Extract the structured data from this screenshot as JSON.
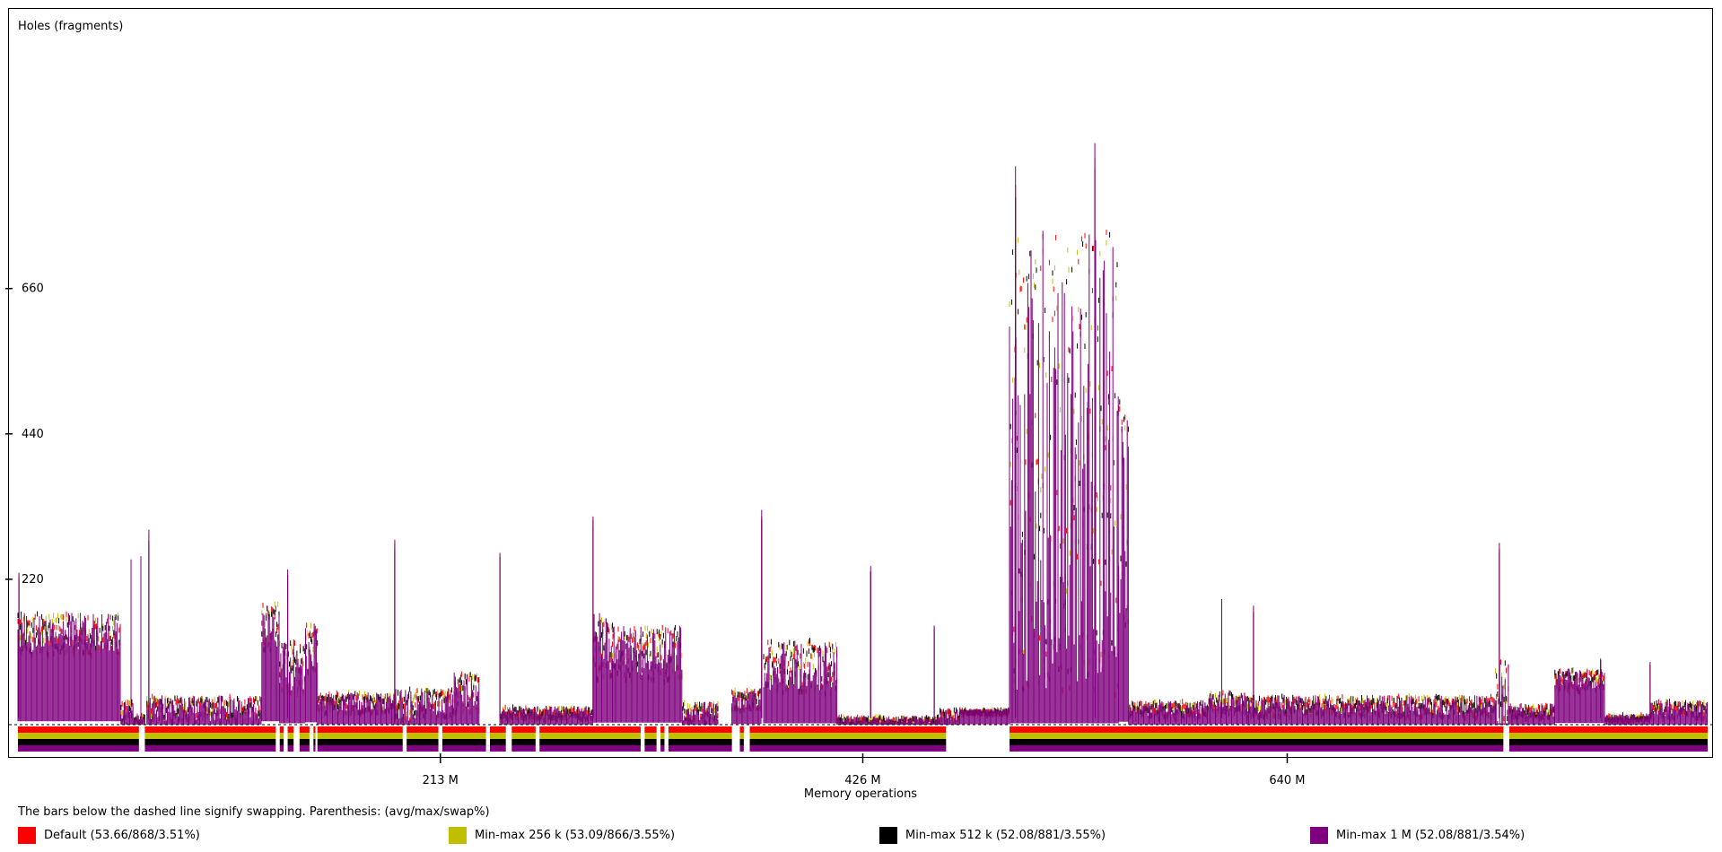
{
  "chart_data": {
    "type": "line",
    "ylabel": "Holes (fragments)",
    "xlabel": "Memory operations",
    "yticks": [
      {
        "value": 220,
        "label": "220"
      },
      {
        "value": 440,
        "label": "440"
      },
      {
        "value": 660,
        "label": "660"
      }
    ],
    "xticks": [
      {
        "value": 213,
        "label": "213 M"
      },
      {
        "value": 426,
        "label": "426 M"
      },
      {
        "value": 640,
        "label": "640 M"
      }
    ],
    "xlim": [
      0,
      852
    ],
    "ylim": [
      0,
      880
    ],
    "series": [
      {
        "name": "Default (53.66/868/3.51%)",
        "color": "#ff0000",
        "avg": 53.66,
        "max": 868,
        "swap_pct": 3.51
      },
      {
        "name": "Min-max 256 k (53.09/866/3.55%)",
        "color": "#bfbf00",
        "avg": 53.09,
        "max": 866,
        "swap_pct": 3.55
      },
      {
        "name": "Min-max 512 k (52.08/881/3.55%)",
        "color": "#000000",
        "avg": 52.08,
        "max": 881,
        "swap_pct": 3.55
      },
      {
        "name": "Min-max 1 M (52.08/881/3.54%)",
        "color": "#7f007f",
        "avg": 52.08,
        "max": 881,
        "swap_pct": 3.54
      }
    ],
    "segments": [
      {
        "x": [
          0,
          52
        ],
        "level": 140,
        "spread": 30
      },
      {
        "x": [
          52,
          58
        ],
        "level": 20,
        "spread": 20
      },
      {
        "x": [
          58,
          64
        ],
        "level": 10,
        "spread": 5
      },
      {
        "x": [
          65,
          123
        ],
        "level": 25,
        "spread": 20
      },
      {
        "x": [
          123,
          132
        ],
        "level": 150,
        "spread": 40
      },
      {
        "x": [
          132,
          145
        ],
        "level": 90,
        "spread": 40
      },
      {
        "x": [
          145,
          151
        ],
        "level": 120,
        "spread": 40
      },
      {
        "x": [
          151,
          190
        ],
        "level": 35,
        "spread": 15
      },
      {
        "x": [
          190,
          203
        ],
        "level": 30,
        "spread": 25
      },
      {
        "x": [
          203,
          220
        ],
        "level": 35,
        "spread": 20
      },
      {
        "x": [
          220,
          233
        ],
        "level": 50,
        "spread": 30
      },
      {
        "x": [
          243,
          290
        ],
        "level": 20,
        "spread": 8
      },
      {
        "x": [
          290,
          300
        ],
        "level": 120,
        "spread": 50
      },
      {
        "x": [
          300,
          335
        ],
        "level": 110,
        "spread": 40
      },
      {
        "x": [
          335,
          353
        ],
        "level": 20,
        "spread": 15
      },
      {
        "x": [
          360,
          375
        ],
        "level": 40,
        "spread": 15
      },
      {
        "x": [
          376,
          413
        ],
        "level": 90,
        "spread": 40
      },
      {
        "x": [
          413,
          465
        ],
        "level": 8,
        "spread": 6
      },
      {
        "x": [
          465,
          475
        ],
        "level": 15,
        "spread": 10
      },
      {
        "x": [
          475,
          500
        ],
        "level": 22,
        "spread": 2
      },
      {
        "x": [
          500,
          555
        ],
        "level": 400,
        "spread": 350
      },
      {
        "x": [
          555,
          560
        ],
        "level": 300,
        "spread": 200
      },
      {
        "x": [
          560,
          600
        ],
        "level": 25,
        "spread": 12
      },
      {
        "x": [
          600,
          620
        ],
        "level": 35,
        "spread": 15
      },
      {
        "x": [
          620,
          745
        ],
        "level": 30,
        "spread": 15
      },
      {
        "x": [
          745,
          752
        ],
        "level": 40,
        "spread": 60
      },
      {
        "x": [
          752,
          775
        ],
        "level": 22,
        "spread": 10
      },
      {
        "x": [
          775,
          800
        ],
        "level": 70,
        "spread": 15
      },
      {
        "x": [
          800,
          823
        ],
        "level": 12,
        "spread": 5
      },
      {
        "x": [
          823,
          852
        ],
        "level": 25,
        "spread": 12
      }
    ],
    "spikes": [
      {
        "x": 0.5,
        "y": 230
      },
      {
        "x": 57,
        "y": 250
      },
      {
        "x": 62,
        "y": 255
      },
      {
        "x": 66,
        "y": 295
      },
      {
        "x": 136,
        "y": 235
      },
      {
        "x": 190,
        "y": 280
      },
      {
        "x": 243,
        "y": 260
      },
      {
        "x": 290,
        "y": 315
      },
      {
        "x": 375,
        "y": 325
      },
      {
        "x": 430,
        "y": 240
      },
      {
        "x": 462,
        "y": 150
      },
      {
        "x": 607,
        "y": 190
      },
      {
        "x": 623,
        "y": 180
      },
      {
        "x": 747,
        "y": 275
      },
      {
        "x": 798,
        "y": 100
      },
      {
        "x": 823,
        "y": 95
      },
      {
        "x": 543,
        "y": 880
      },
      {
        "x": 503,
        "y": 845
      }
    ],
    "swap_gaps": [
      [
        61,
        64
      ],
      [
        130,
        132
      ],
      [
        134,
        136
      ],
      [
        139,
        142
      ],
      [
        147,
        149
      ],
      [
        150,
        151
      ],
      [
        194,
        196
      ],
      [
        212,
        214
      ],
      [
        236,
        238
      ],
      [
        246,
        249
      ],
      [
        261,
        263
      ],
      [
        314,
        316
      ],
      [
        322,
        324
      ],
      [
        326,
        328
      ],
      [
        360,
        364
      ],
      [
        366,
        369
      ],
      [
        468,
        500
      ],
      [
        749,
        752
      ]
    ]
  },
  "footer": {
    "note": "The bars below the dashed line signify swapping. Parenthesis: (avg/max/swap%)"
  }
}
